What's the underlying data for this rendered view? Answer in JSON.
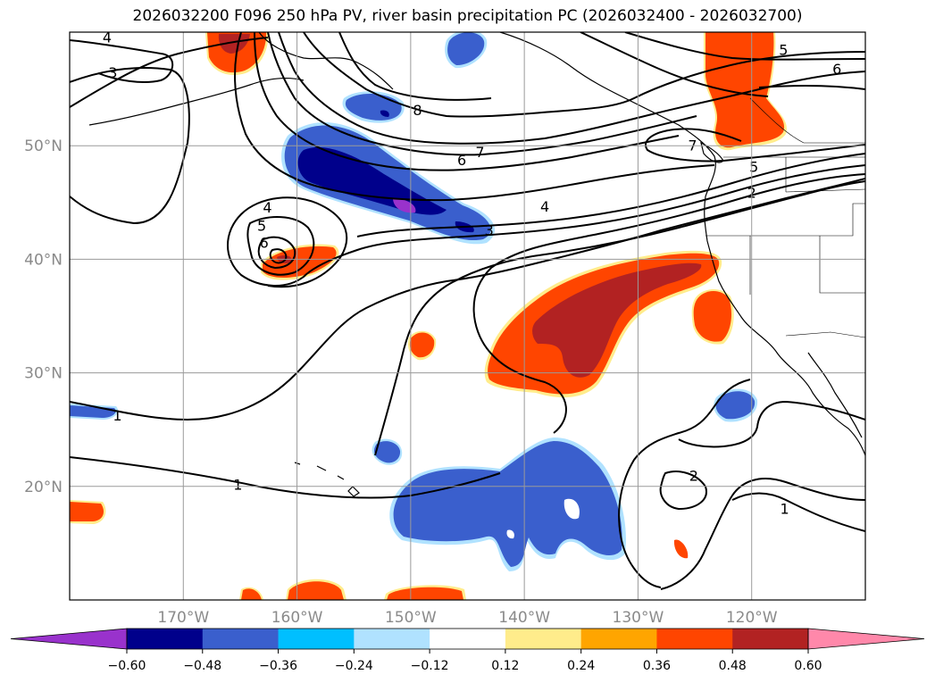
{
  "title": "2026032200 F096 250 hPa PV, river basin precipitation PC (2026032400 - 2026032700)",
  "map": {
    "lat_range": [
      10,
      60
    ],
    "lon_range": [
      -180,
      -110
    ],
    "lat_ticks": [
      {
        "value": 20,
        "label": "20°N"
      },
      {
        "value": 30,
        "label": "30°N"
      },
      {
        "value": 40,
        "label": "40°N"
      },
      {
        "value": 50,
        "label": "50°N"
      }
    ],
    "lon_ticks": [
      {
        "value": -170,
        "label": "170°W"
      },
      {
        "value": -160,
        "label": "160°W"
      },
      {
        "value": -150,
        "label": "150°W"
      },
      {
        "value": -140,
        "label": "140°W"
      },
      {
        "value": -130,
        "label": "130°W"
      },
      {
        "value": -120,
        "label": "120°W"
      }
    ],
    "grid": true,
    "contour_field": "250 hPa PV",
    "contour_labels": [
      {
        "text": "4",
        "lon": -176.7,
        "lat": 59.1
      },
      {
        "text": "3",
        "lon": -176.2,
        "lat": 56.0
      },
      {
        "text": "8",
        "lon": -149.4,
        "lat": 52.7
      },
      {
        "text": "7",
        "lon": -143.9,
        "lat": 49.0
      },
      {
        "text": "6",
        "lon": -145.5,
        "lat": 48.3
      },
      {
        "text": "5",
        "lon": -117.2,
        "lat": 58.0
      },
      {
        "text": "6",
        "lon": -112.5,
        "lat": 56.3
      },
      {
        "text": "7",
        "lon": -125.2,
        "lat": 49.6
      },
      {
        "text": "5",
        "lon": -119.8,
        "lat": 47.7
      },
      {
        "text": "2",
        "lon": -120.0,
        "lat": 45.4
      },
      {
        "text": "4",
        "lon": -138.2,
        "lat": 44.2
      },
      {
        "text": "3",
        "lon": -143.1,
        "lat": 42.1
      },
      {
        "text": "4",
        "lon": -162.6,
        "lat": 44.1
      },
      {
        "text": "5",
        "lon": -163.1,
        "lat": 42.5
      },
      {
        "text": "6",
        "lon": -162.9,
        "lat": 41.0
      },
      {
        "text": "1",
        "lon": -175.8,
        "lat": 25.8
      },
      {
        "text": "1",
        "lon": -165.2,
        "lat": 19.7
      },
      {
        "text": "2",
        "lon": -125.1,
        "lat": 20.5
      },
      {
        "text": "1",
        "lon": -117.1,
        "lat": 17.6
      }
    ],
    "shading_field": "river basin precipitation PC",
    "colors": {
      "neg_060": "#9932cc",
      "neg_048": "#00008b",
      "neg_036": "#3a5fcd",
      "neg_024": "#00bfff",
      "neg_012": "#b0e2ff",
      "zero": "#ffffff",
      "pos_012": "#ffec8b",
      "pos_024": "#ffa500",
      "pos_036": "#ff4500",
      "pos_048": "#b22222",
      "pos_060": "#ff88aa"
    }
  },
  "colorbar": {
    "ticks": [
      "−0.60",
      "−0.48",
      "−0.36",
      "−0.24",
      "−0.12",
      "0.12",
      "0.24",
      "0.36",
      "0.48",
      "0.60"
    ],
    "colors": [
      "#9932cc",
      "#00008b",
      "#3a5fcd",
      "#00bfff",
      "#b0e2ff",
      "#ffffff",
      "#ffec8b",
      "#ffa500",
      "#ff4500",
      "#b22222",
      "#ff88aa"
    ]
  }
}
